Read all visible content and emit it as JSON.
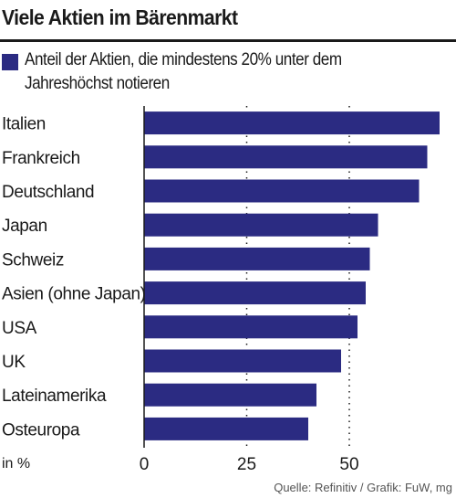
{
  "title": "Viele Aktien im Bärenmarkt",
  "legend": {
    "label": "Anteil der Aktien, die mindestens 20% unter dem Jahreshöchst notieren",
    "color": "#2b2b82"
  },
  "source": "Quelle: Refinitiv / Grafik: FuW, mg",
  "chart_data": {
    "type": "bar",
    "orientation": "horizontal",
    "categories": [
      "Italien",
      "Frankreich",
      "Deutschland",
      "Japan",
      "Schweiz",
      "Asien (ohne Japan)",
      "USA",
      "UK",
      "Lateinamerika",
      "Osteuropa"
    ],
    "series": [
      {
        "name": "Anteil der Aktien, die mindestens 20% unter dem Jahreshöchst notieren",
        "values": [
          72,
          69,
          67,
          57,
          55,
          54,
          52,
          48,
          42,
          40
        ]
      }
    ],
    "xlim": [
      0,
      76
    ],
    "xticks": [
      "0",
      "25",
      "50"
    ],
    "xlabel": "in %",
    "grid": "dotted vertical",
    "bar_color": "#2b2b82"
  }
}
